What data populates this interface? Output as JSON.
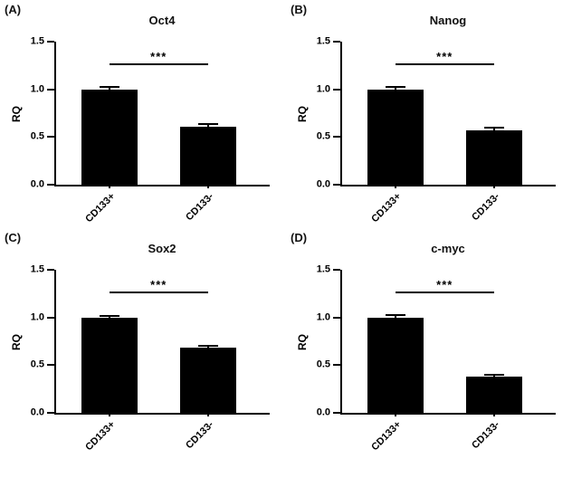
{
  "figure": {
    "background": "#ffffff",
    "bar_color": "#000000",
    "axis_color": "#000000"
  },
  "chart_data": [
    {
      "type": "bar",
      "panel": "(A)",
      "title": "Oct4",
      "ylabel": "RQ",
      "categories": [
        "CD133+",
        "CD133-"
      ],
      "values": [
        1.0,
        0.61
      ],
      "errors": [
        0.02,
        0.015
      ],
      "significance": "***",
      "significance_y": 1.25,
      "ylim": [
        0,
        1.5
      ],
      "yticks": [
        0.0,
        0.5,
        1.0,
        1.5
      ],
      "grid": false,
      "legend": "none"
    },
    {
      "type": "bar",
      "panel": "(B)",
      "title": "Nanog",
      "ylabel": "RQ",
      "categories": [
        "CD133+",
        "CD133-"
      ],
      "values": [
        1.0,
        0.57
      ],
      "errors": [
        0.02,
        0.02
      ],
      "significance": "***",
      "significance_y": 1.25,
      "ylim": [
        0,
        1.5
      ],
      "yticks": [
        0.0,
        0.5,
        1.0,
        1.5
      ],
      "grid": false,
      "legend": "none"
    },
    {
      "type": "bar",
      "panel": "(C)",
      "title": "Sox2",
      "ylabel": "RQ",
      "categories": [
        "CD133+",
        "CD133-"
      ],
      "values": [
        1.0,
        0.68
      ],
      "errors": [
        0.005,
        0.015
      ],
      "significance": "***",
      "significance_y": 1.25,
      "ylim": [
        0,
        1.5
      ],
      "yticks": [
        0.0,
        0.5,
        1.0,
        1.5
      ],
      "grid": false,
      "legend": "none"
    },
    {
      "type": "bar",
      "panel": "(D)",
      "title": "c-myc",
      "ylabel": "RQ",
      "categories": [
        "CD133+",
        "CD133-"
      ],
      "values": [
        1.0,
        0.38
      ],
      "errors": [
        0.02,
        0.005
      ],
      "significance": "***",
      "significance_y": 1.25,
      "ylim": [
        0,
        1.5
      ],
      "yticks": [
        0.0,
        0.5,
        1.0,
        1.5
      ],
      "grid": false,
      "legend": "none"
    }
  ]
}
